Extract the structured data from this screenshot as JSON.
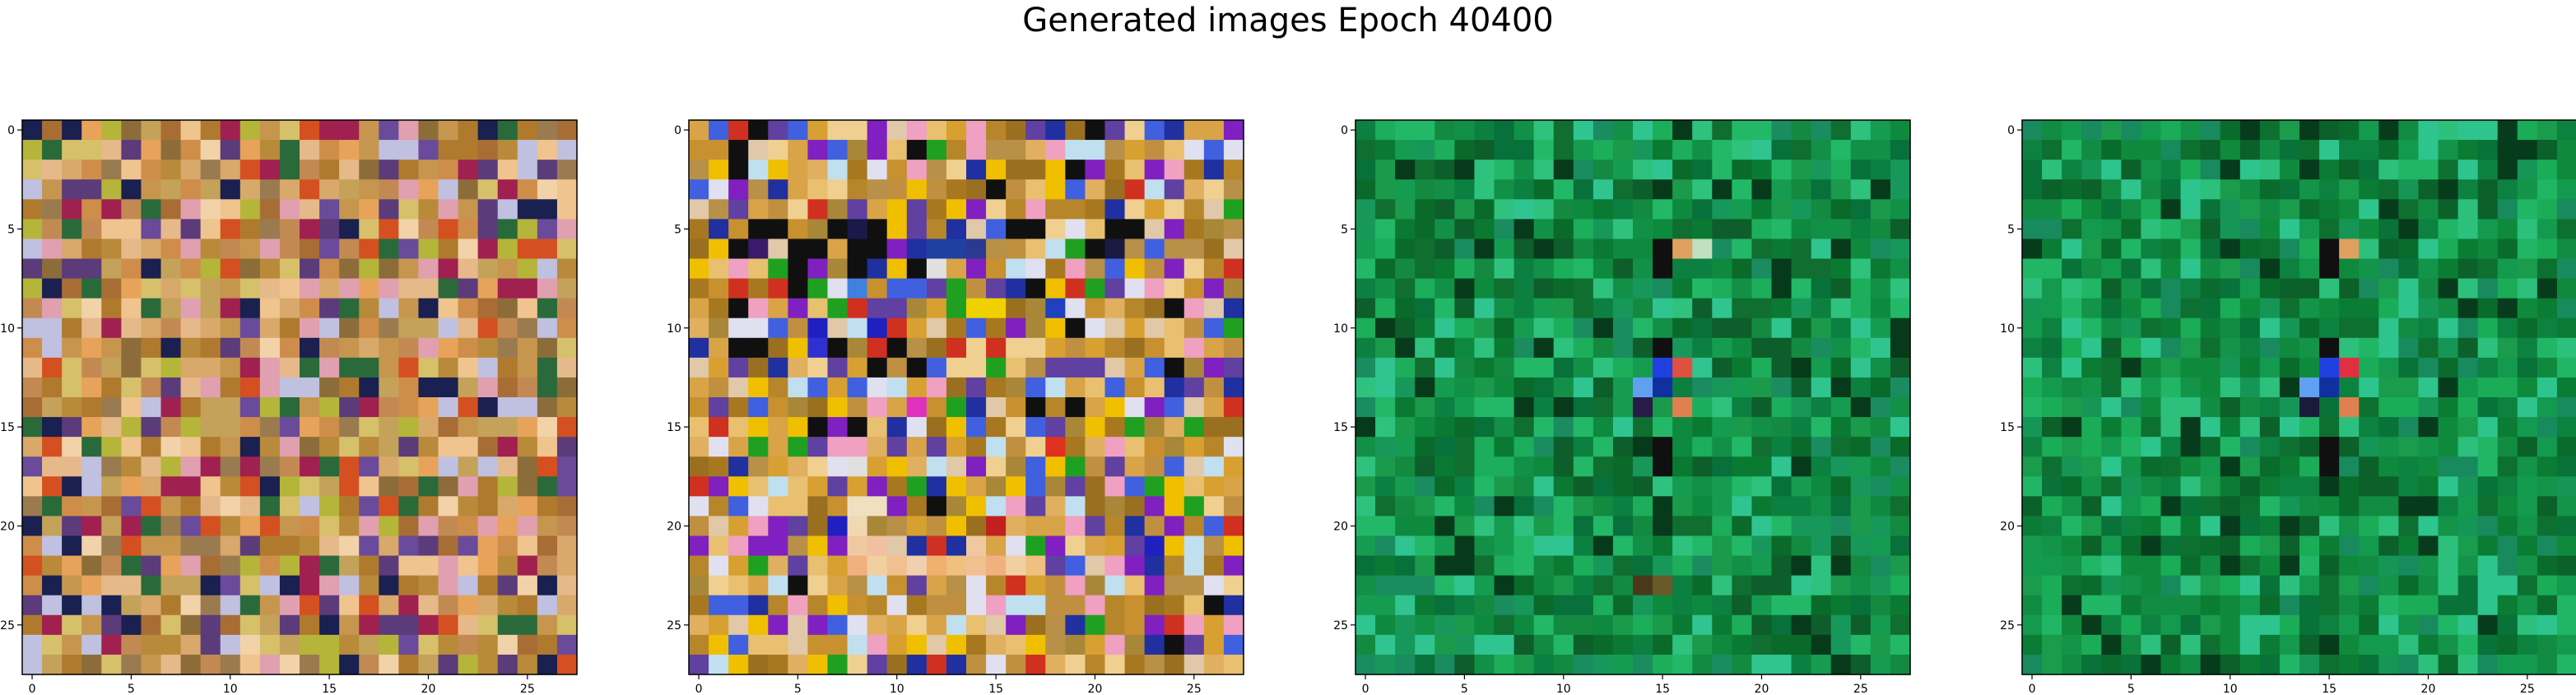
{
  "figure": {
    "title": "Generated images Epoch 40400"
  },
  "colors": {
    "panel_palettes": [
      [
        "#d9a86b",
        "#c7964e",
        "#e6b98a",
        "#b88a3a",
        "#a86d35",
        "#c4a25a",
        "#f0c48e",
        "#8c6d3a",
        "#e8a35a",
        "#c28a52",
        "#d6c06a",
        "#b07a2e",
        "#f2d2a8",
        "#9a7b4f",
        "#cf8d4a",
        "#5b3b7a",
        "#a02050",
        "#1a2050",
        "#d45020",
        "#b5b53a",
        "#6a4a9a",
        "#2a6a3a",
        "#e0a0b0",
        "#c0c0e0"
      ],
      [
        "#c8902e",
        "#b7862a",
        "#d9a347",
        "#a87820",
        "#e0b060",
        "#c09040",
        "#f0d090",
        "#9a7020",
        "#d8a030",
        "#b89048",
        "#e8c070",
        "#a88838",
        "#101010",
        "#2030a0",
        "#8020c0",
        "#e0e0f0",
        "#f0c000",
        "#d03020",
        "#20a020",
        "#4060e0",
        "#f0a0c0",
        "#c0e0f0",
        "#6040a0",
        "#e0c8a8"
      ],
      [
        "#0e8a3e",
        "#138a40",
        "#0a7a32",
        "#1a9a4a",
        "#0f6e30",
        "#129048",
        "#08703a",
        "#1cae5a",
        "#0c8040",
        "#17985a",
        "#0a6a2a",
        "#159c50",
        "#22b868",
        "#2ec27e",
        "#0d5e2a",
        "#1a8c60",
        "#30c490",
        "#063a1a"
      ],
      [
        "#0f8a3c",
        "#128c42",
        "#0b7c34",
        "#1a9c4c",
        "#0e7030",
        "#139448",
        "#087238",
        "#1bac58",
        "#0d8240",
        "#169656",
        "#0a6c2c",
        "#149a4e",
        "#20b666",
        "#2cc07c",
        "#0c602a",
        "#188a5e",
        "#2ec48e",
        "#063c1c"
      ]
    ],
    "panel_features": [
      {
        "cells": []
      },
      {
        "cells": [
          [
            5,
            3,
            "#101010"
          ],
          [
            5,
            4,
            "#101010"
          ],
          [
            5,
            7,
            "#101010"
          ],
          [
            5,
            8,
            "#1a1a4a"
          ],
          [
            5,
            9,
            "#101010"
          ],
          [
            6,
            2,
            "#101010"
          ],
          [
            6,
            3,
            "#3a1a6a"
          ],
          [
            6,
            5,
            "#101010"
          ],
          [
            6,
            8,
            "#101010"
          ],
          [
            6,
            9,
            "#101010"
          ],
          [
            6,
            12,
            "#2040a0"
          ],
          [
            6,
            13,
            "#2040a0"
          ],
          [
            6,
            14,
            "#2a3a90"
          ],
          [
            6,
            20,
            "#101010"
          ],
          [
            6,
            21,
            "#1a1a40"
          ],
          [
            5,
            16,
            "#101010"
          ],
          [
            5,
            17,
            "#101010"
          ],
          [
            5,
            21,
            "#101010"
          ],
          [
            5,
            22,
            "#101010"
          ],
          [
            7,
            4,
            "#20a020"
          ],
          [
            7,
            6,
            "#8020c0"
          ],
          [
            7,
            8,
            "#101010"
          ],
          [
            7,
            10,
            "#f0c000"
          ],
          [
            7,
            12,
            "#e0e0e0"
          ],
          [
            7,
            14,
            "#8020c0"
          ],
          [
            8,
            5,
            "#101010"
          ],
          [
            8,
            8,
            "#4080e0"
          ],
          [
            9,
            3,
            "#f0a0c0"
          ],
          [
            9,
            5,
            "#8020c0"
          ],
          [
            9,
            14,
            "#f0d000"
          ],
          [
            9,
            15,
            "#f0d000"
          ],
          [
            9,
            18,
            "#2040c0"
          ],
          [
            10,
            6,
            "#2020c0"
          ],
          [
            10,
            9,
            "#2020c0"
          ],
          [
            10,
            16,
            "#8020c0"
          ],
          [
            11,
            6,
            "#3030d0"
          ],
          [
            11,
            7,
            "#101010"
          ],
          [
            11,
            10,
            "#101010"
          ],
          [
            12,
            9,
            "#101010"
          ],
          [
            14,
            11,
            "#e030c0"
          ],
          [
            15,
            7,
            "#8020c0"
          ],
          [
            15,
            13,
            "#f0c000"
          ],
          [
            17,
            8,
            "#e0e0e0"
          ],
          [
            19,
            8,
            "#f0e0c0"
          ],
          [
            19,
            9,
            "#f0e0c0"
          ],
          [
            20,
            8,
            "#f0d8b0"
          ],
          [
            21,
            8,
            "#f0c8a0"
          ],
          [
            21,
            9,
            "#f0c0a0"
          ],
          [
            21,
            14,
            "#f0c8a0"
          ],
          [
            22,
            8,
            "#f0b080"
          ],
          [
            22,
            9,
            "#f0d0a0"
          ],
          [
            22,
            10,
            "#f0c090"
          ],
          [
            22,
            11,
            "#f0d0b0"
          ],
          [
            22,
            12,
            "#f0b070"
          ],
          [
            22,
            13,
            "#f0c080"
          ],
          [
            22,
            14,
            "#f0c090"
          ],
          [
            22,
            15,
            "#f0b080"
          ],
          [
            22,
            16,
            "#f0d0a0"
          ],
          [
            22,
            17,
            "#f0c080"
          ],
          [
            21,
            7,
            "#8020c0"
          ],
          [
            21,
            23,
            "#2020c0"
          ],
          [
            20,
            7,
            "#2020c0"
          ],
          [
            19,
            23,
            "#8020c0"
          ],
          [
            20,
            15,
            "#c02020"
          ],
          [
            16,
            18,
            "#e03020"
          ]
        ]
      },
      {
        "cells": [
          [
            6,
            15,
            "#101010"
          ],
          [
            6,
            16,
            "#e0a060"
          ],
          [
            6,
            17,
            "#c0e0c0"
          ],
          [
            7,
            15,
            "#101010"
          ],
          [
            11,
            15,
            "#101010"
          ],
          [
            12,
            15,
            "#2040e0"
          ],
          [
            12,
            16,
            "#e05040"
          ],
          [
            13,
            15,
            "#1030a0"
          ],
          [
            13,
            14,
            "#60a0f0"
          ],
          [
            14,
            14,
            "#2a1a4a"
          ],
          [
            14,
            16,
            "#e08050"
          ],
          [
            16,
            15,
            "#101010"
          ],
          [
            17,
            15,
            "#101010"
          ],
          [
            23,
            14,
            "#4a3a1a"
          ],
          [
            23,
            15,
            "#6a5a2a"
          ]
        ]
      },
      {
        "cells": [
          [
            6,
            15,
            "#101010"
          ],
          [
            6,
            16,
            "#e0a060"
          ],
          [
            7,
            15,
            "#101010"
          ],
          [
            11,
            15,
            "#101010"
          ],
          [
            12,
            15,
            "#2040e0"
          ],
          [
            12,
            16,
            "#e03040"
          ],
          [
            13,
            15,
            "#1030a0"
          ],
          [
            13,
            14,
            "#60a0f0"
          ],
          [
            14,
            14,
            "#1a1a3a"
          ],
          [
            14,
            16,
            "#e08050"
          ],
          [
            16,
            15,
            "#101010"
          ],
          [
            17,
            15,
            "#101010"
          ]
        ]
      }
    ],
    "axis": "#000000"
  },
  "chart_data": [
    {
      "type": "heatmap",
      "xlim": [
        -0.5,
        27.5
      ],
      "ylim": [
        27.5,
        -0.5
      ],
      "xticks": [
        0,
        5,
        10,
        15,
        20,
        25
      ],
      "yticks": [
        0,
        5,
        10,
        15,
        20,
        25
      ],
      "xtick_labels": [
        "0",
        "5",
        "10",
        "15",
        "20",
        "25"
      ],
      "ytick_labels": [
        "0",
        "5",
        "10",
        "15",
        "20",
        "25"
      ],
      "grid": false,
      "size": [
        28,
        28
      ]
    },
    {
      "type": "heatmap",
      "xlim": [
        -0.5,
        27.5
      ],
      "ylim": [
        27.5,
        -0.5
      ],
      "xticks": [
        0,
        5,
        10,
        15,
        20,
        25
      ],
      "yticks": [
        0,
        5,
        10,
        15,
        20,
        25
      ],
      "xtick_labels": [
        "0",
        "5",
        "10",
        "15",
        "20",
        "25"
      ],
      "ytick_labels": [
        "0",
        "5",
        "10",
        "15",
        "20",
        "25"
      ],
      "grid": false,
      "size": [
        28,
        28
      ]
    },
    {
      "type": "heatmap",
      "xlim": [
        -0.5,
        27.5
      ],
      "ylim": [
        27.5,
        -0.5
      ],
      "xticks": [
        0,
        5,
        10,
        15,
        20,
        25
      ],
      "yticks": [
        0,
        5,
        10,
        15,
        20,
        25
      ],
      "xtick_labels": [
        "0",
        "5",
        "10",
        "15",
        "20",
        "25"
      ],
      "ytick_labels": [
        "0",
        "5",
        "10",
        "15",
        "20",
        "25"
      ],
      "grid": false,
      "size": [
        28,
        28
      ]
    },
    {
      "type": "heatmap",
      "xlim": [
        -0.5,
        27.5
      ],
      "ylim": [
        27.5,
        -0.5
      ],
      "xticks": [
        0,
        5,
        10,
        15,
        20,
        25
      ],
      "yticks": [
        0,
        5,
        10,
        15,
        20,
        25
      ],
      "xtick_labels": [
        "0",
        "5",
        "10",
        "15",
        "20",
        "25"
      ],
      "ytick_labels": [
        "0",
        "5",
        "10",
        "15",
        "20",
        "25"
      ],
      "grid": false,
      "size": [
        28,
        28
      ]
    }
  ]
}
